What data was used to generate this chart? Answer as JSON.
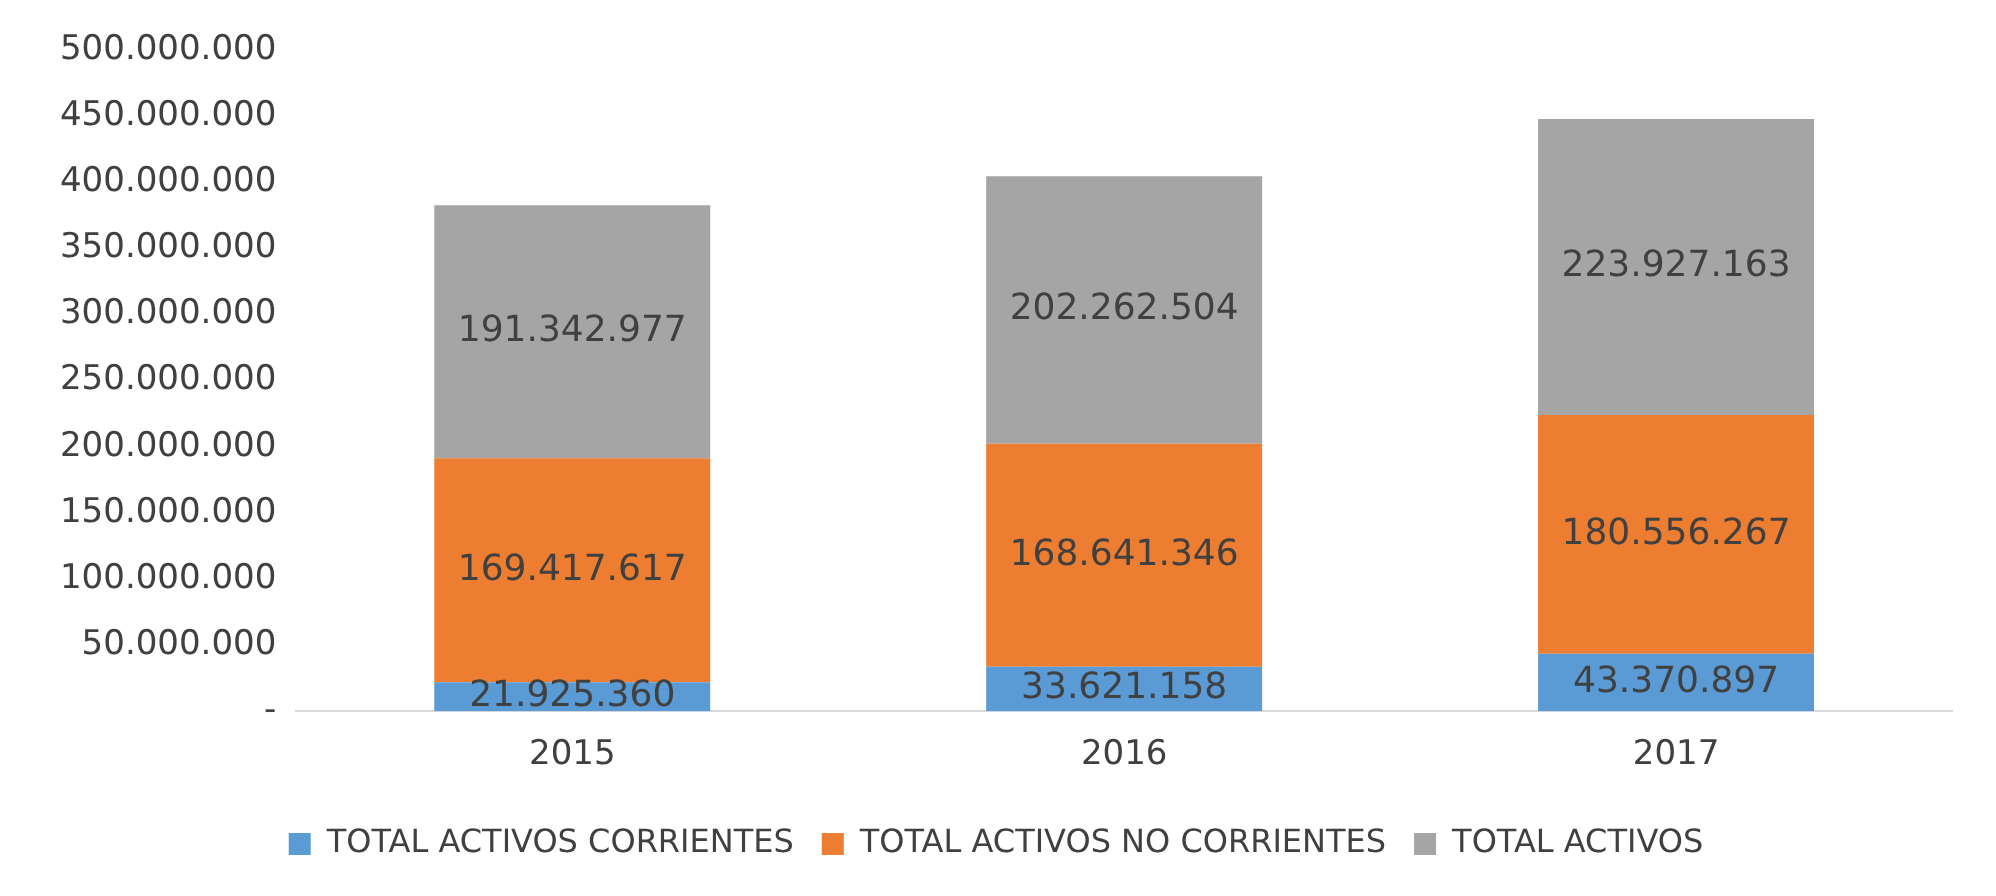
{
  "chart_data": {
    "type": "bar",
    "stacked": true,
    "categories": [
      "2015",
      "2016",
      "2017"
    ],
    "series": [
      {
        "name": "TOTAL ACTIVOS CORRIENTES",
        "color": "#5b9bd5",
        "values": [
          21925360,
          33621158,
          43370897
        ],
        "value_labels": [
          "21.925.360",
          "33.621.158",
          "43.370.897"
        ]
      },
      {
        "name": "TOTAL ACTIVOS NO CORRIENTES",
        "color": "#ed7d31",
        "values": [
          169417617,
          168641346,
          180556267
        ],
        "value_labels": [
          "169.417.617",
          "168.641.346",
          "180.556.267"
        ]
      },
      {
        "name": "TOTAL ACTIVOS",
        "color": "#a5a5a5",
        "values": [
          191342977,
          202262504,
          223927163
        ],
        "value_labels": [
          "191.342.977",
          "202.262.504",
          "223.927.163"
        ]
      }
    ],
    "ylim": [
      0,
      500000000
    ],
    "yticks": [
      {
        "value": 0,
        "label": "-"
      },
      {
        "value": 50000000,
        "label": "50.000.000"
      },
      {
        "value": 100000000,
        "label": "100.000.000"
      },
      {
        "value": 150000000,
        "label": "150.000.000"
      },
      {
        "value": 200000000,
        "label": "200.000.000"
      },
      {
        "value": 250000000,
        "label": "250.000.000"
      },
      {
        "value": 300000000,
        "label": "300.000.000"
      },
      {
        "value": 350000000,
        "label": "350.000.000"
      },
      {
        "value": 400000000,
        "label": "400.000.000"
      },
      {
        "value": 450000000,
        "label": "450.000.000"
      },
      {
        "value": 500000000,
        "label": "500.000.000"
      }
    ],
    "grid": false,
    "legend": "bottom"
  }
}
